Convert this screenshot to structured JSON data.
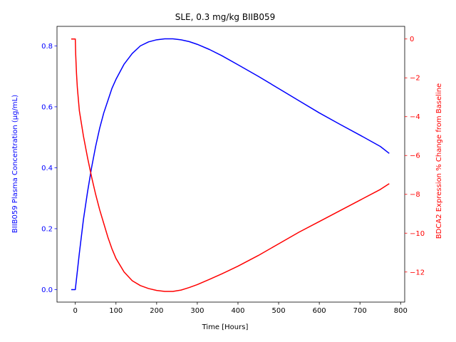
{
  "chart_data": {
    "type": "line",
    "title": "SLE, 0.3 mg/kg BIIB059",
    "xlabel": "Time [Hours]",
    "ylabel_left": "BIIB059 Plasma Concentration (µg/mL)",
    "ylabel_right": "BDCA2 Expression % Change from Baseline",
    "xlim": [
      -45,
      810
    ],
    "ylim_left": [
      -0.041,
      0.864
    ],
    "ylim_right": [
      -13.55,
      0.65
    ],
    "x_ticks": [
      0,
      100,
      200,
      300,
      400,
      500,
      600,
      700,
      800
    ],
    "x_tick_labels": [
      "0",
      "100",
      "200",
      "300",
      "400",
      "500",
      "600",
      "700",
      "800"
    ],
    "y_left_ticks": [
      0.0,
      0.2,
      0.4,
      0.6,
      0.8
    ],
    "y_left_tick_labels": [
      "0.0",
      "0.2",
      "0.4",
      "0.6",
      "0.8"
    ],
    "y_right_ticks": [
      0,
      -2,
      -4,
      -6,
      -8,
      -10,
      -12
    ],
    "y_right_tick_labels": [
      "0",
      "−2",
      "−4",
      "−6",
      "−8",
      "−10",
      "−12"
    ],
    "grid": false,
    "legend": "none",
    "colors": {
      "left_axis": "#0000ff",
      "right_axis": "#ff0000",
      "frame": "#000000"
    },
    "series": [
      {
        "axis": "left",
        "color": "#0000ff",
        "x": [
          -10,
          0,
          5,
          10,
          20,
          30,
          40,
          50,
          60,
          70,
          80,
          90,
          100,
          120,
          140,
          160,
          180,
          200,
          220,
          240,
          260,
          280,
          300,
          330,
          360,
          400,
          450,
          500,
          550,
          600,
          650,
          700,
          750,
          772
        ],
        "y": [
          0.0,
          0.0,
          0.06,
          0.12,
          0.23,
          0.32,
          0.4,
          0.47,
          0.53,
          0.58,
          0.62,
          0.66,
          0.69,
          0.74,
          0.775,
          0.8,
          0.813,
          0.82,
          0.823,
          0.823,
          0.82,
          0.814,
          0.805,
          0.788,
          0.768,
          0.738,
          0.7,
          0.66,
          0.62,
          0.58,
          0.543,
          0.507,
          0.47,
          0.447
        ]
      },
      {
        "axis": "right",
        "color": "#ff0000",
        "x": [
          -10,
          0,
          1,
          3,
          5,
          10,
          20,
          30,
          40,
          50,
          60,
          70,
          80,
          90,
          100,
          120,
          140,
          160,
          180,
          200,
          220,
          230,
          240,
          260,
          280,
          300,
          330,
          360,
          400,
          450,
          500,
          550,
          600,
          650,
          700,
          750,
          772
        ],
        "y": [
          0.0,
          0.0,
          -0.8,
          -1.8,
          -2.5,
          -3.7,
          -5.0,
          -6.1,
          -7.1,
          -8.0,
          -8.8,
          -9.5,
          -10.2,
          -10.8,
          -11.3,
          -12.0,
          -12.45,
          -12.7,
          -12.85,
          -12.95,
          -13.0,
          -13.0,
          -13.0,
          -12.93,
          -12.8,
          -12.65,
          -12.38,
          -12.1,
          -11.7,
          -11.15,
          -10.55,
          -9.95,
          -9.4,
          -8.85,
          -8.3,
          -7.75,
          -7.45
        ]
      }
    ]
  }
}
